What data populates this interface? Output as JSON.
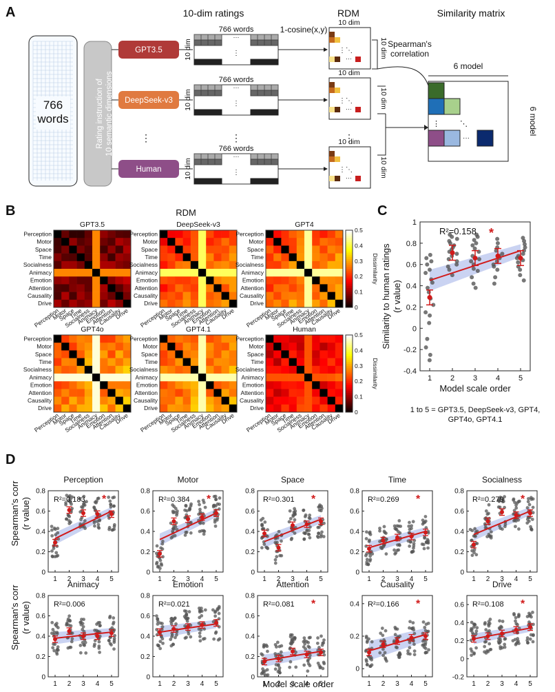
{
  "panels": {
    "A": "A",
    "B": "B",
    "C": "C",
    "D": "D"
  },
  "panelA": {
    "words_box": "766\nwords",
    "rating_instruction": "Rating instruction of\n10 semantic dimensions",
    "header_ratings": "10-dim ratings",
    "header_rdm": "RDM",
    "header_sim": "Similarity matrix",
    "models": [
      {
        "label": "GPT3.5",
        "color": "#b03a38"
      },
      {
        "label": "DeepSeek-v3",
        "color": "#e07a40"
      },
      {
        "label": "Human",
        "color": "#8e4e88"
      }
    ],
    "words_label": "766 words",
    "dim10": "10 dim",
    "ellipsis": "···",
    "cosine": "1-cosine(x,y)",
    "spearman": "Spearman's\ncorrelation",
    "model6": "6 model",
    "sim_colors": [
      "#3a6b2a",
      "#1f6fb7",
      "#a8d08c",
      "#8e4e88",
      "#9ab8e0",
      "#0b2a6e"
    ]
  },
  "panelB": {
    "title": "RDM",
    "dims": [
      "Perception",
      "Motor",
      "Space",
      "Time",
      "Socialness",
      "Animacy",
      "Emotion",
      "Attention",
      "Causality",
      "Drive"
    ],
    "models": [
      "GPT3.5",
      "DeepSeek-v3",
      "GPT4",
      "GPT4o",
      "GPT4.1",
      "Human"
    ],
    "colorbar_label": "Dissimilarity",
    "colorbar_ticks": [
      "0.5",
      "0.4",
      "0.3",
      "0.2",
      "0.1",
      "0"
    ],
    "levels": [
      [
        0.05,
        0.08,
        0.06,
        0.07,
        0.1,
        0.28,
        0.09,
        0.08,
        0.1,
        0.12
      ],
      [
        0.18,
        0.2,
        0.22,
        0.24,
        0.26,
        0.42,
        0.26,
        0.24,
        0.27,
        0.3
      ],
      [
        0.2,
        0.22,
        0.24,
        0.26,
        0.28,
        0.45,
        0.27,
        0.25,
        0.28,
        0.31
      ],
      [
        0.22,
        0.24,
        0.26,
        0.28,
        0.3,
        0.48,
        0.28,
        0.26,
        0.3,
        0.32
      ],
      [
        0.22,
        0.24,
        0.26,
        0.27,
        0.3,
        0.46,
        0.28,
        0.26,
        0.3,
        0.32
      ],
      [
        0.14,
        0.12,
        0.16,
        0.18,
        0.2,
        0.24,
        0.16,
        0.18,
        0.2,
        0.22
      ]
    ]
  },
  "panelC": {
    "chart_data": {
      "type": "scatter",
      "ylabel": "Similarity to human ratings\n(r value)",
      "xlabel": "Model scale order",
      "ylim": [
        -0.4,
        1
      ],
      "yticks": [
        "1",
        "0.8",
        "0.6",
        "0.4",
        "0.2",
        "0",
        "-0.2",
        "-0.4"
      ],
      "xticks": [
        "1",
        "2",
        "3",
        "4",
        "5"
      ],
      "r2": "R²=0.158",
      "significant": true,
      "means": [
        0.29,
        0.71,
        0.66,
        0.68,
        0.66
      ],
      "fit": [
        0.45,
        0.52,
        0.59,
        0.66,
        0.73
      ],
      "points": [
        [
          -0.3,
          -0.25,
          -0.18,
          -0.1,
          0.05,
          0.12,
          0.15,
          0.22,
          0.28,
          0.34,
          0.38,
          0.43,
          0.46,
          0.52,
          0.55,
          0.6,
          0.63,
          0.66,
          0.69
        ],
        [
          0.5,
          0.55,
          0.58,
          0.6,
          0.63,
          0.65,
          0.68,
          0.7,
          0.72,
          0.74,
          0.76,
          0.78,
          0.8,
          0.82,
          0.84,
          0.86,
          0.88
        ],
        [
          0.38,
          0.42,
          0.48,
          0.54,
          0.56,
          0.6,
          0.63,
          0.65,
          0.68,
          0.72,
          0.75,
          0.78,
          0.8,
          0.83,
          0.86,
          0.88
        ],
        [
          0.42,
          0.48,
          0.55,
          0.58,
          0.6,
          0.63,
          0.66,
          0.68,
          0.7,
          0.73,
          0.76,
          0.8,
          0.84
        ],
        [
          0.45,
          0.5,
          0.55,
          0.58,
          0.62,
          0.64,
          0.66,
          0.68,
          0.7,
          0.73,
          0.76,
          0.79,
          0.82,
          0.85
        ]
      ]
    },
    "footnote": "1 to 5 = GPT3.5, DeepSeek-v3, GPT4,\nGPT4o, GPT4.1"
  },
  "panelD": {
    "ylabel": "Spearman's corr\n(r value)",
    "xlabel": "Model scale order",
    "chart_data": [
      {
        "type": "scatter",
        "title": "Perception",
        "r2": "R²=0.183",
        "sig": true,
        "ylim": [
          0,
          0.8
        ],
        "yticks": [
          "0.8",
          "0.6",
          "0.4",
          "0.2",
          "0"
        ],
        "means": [
          0.29,
          0.61,
          0.58,
          0.57,
          0.57
        ],
        "fit": [
          0.33,
          0.4,
          0.46,
          0.53,
          0.6
        ]
      },
      {
        "type": "scatter",
        "title": "Motor",
        "r2": "R²=0.384",
        "sig": true,
        "ylim": [
          0,
          0.8
        ],
        "yticks": [
          "0.8",
          "0.6",
          "0.4",
          "0.2",
          "0"
        ],
        "means": [
          0.18,
          0.5,
          0.52,
          0.54,
          0.58
        ],
        "fit": [
          0.32,
          0.39,
          0.45,
          0.52,
          0.58
        ]
      },
      {
        "type": "scatter",
        "title": "Space",
        "r2": "R²=0.301",
        "sig": true,
        "ylim": [
          0,
          0.8
        ],
        "yticks": [
          "0.8",
          "0.6",
          "0.4",
          "0.2",
          "0"
        ],
        "means": [
          0.38,
          0.24,
          0.46,
          0.47,
          0.5
        ],
        "fit": [
          0.3,
          0.36,
          0.41,
          0.47,
          0.52
        ]
      },
      {
        "type": "scatter",
        "title": "Time",
        "r2": "R²=0.269",
        "sig": true,
        "ylim": [
          0,
          0.8
        ],
        "yticks": [
          "0.8",
          "0.6",
          "0.4",
          "0.2",
          "0"
        ],
        "means": [
          0.23,
          0.31,
          0.34,
          0.35,
          0.39
        ],
        "fit": [
          0.24,
          0.28,
          0.32,
          0.36,
          0.4
        ]
      },
      {
        "type": "scatter",
        "title": "Socialness",
        "r2": "R²=0.279",
        "sig": true,
        "ylim": [
          0,
          0.8
        ],
        "yticks": [
          "0.8",
          "0.6",
          "0.4",
          "0.2",
          "0"
        ],
        "means": [
          0.27,
          0.5,
          0.59,
          0.56,
          0.58
        ],
        "fit": [
          0.37,
          0.43,
          0.49,
          0.54,
          0.6
        ]
      },
      {
        "type": "scatter",
        "title": "Animacy",
        "r2": "R²=0.006",
        "sig": false,
        "ylim": [
          0,
          0.8
        ],
        "yticks": [
          "0.8",
          "0.6",
          "0.4",
          "0.2",
          "0"
        ],
        "means": [
          0.37,
          0.45,
          0.4,
          0.4,
          0.43
        ],
        "fit": [
          0.38,
          0.4,
          0.41,
          0.42,
          0.44
        ]
      },
      {
        "type": "scatter",
        "title": "Emotion",
        "r2": "R²=0.021",
        "sig": false,
        "ylim": [
          0,
          0.8
        ],
        "yticks": [
          "0.8",
          "0.6",
          "0.4",
          "0.2",
          "0"
        ],
        "means": [
          0.44,
          0.47,
          0.49,
          0.51,
          0.53
        ],
        "fit": [
          0.44,
          0.46,
          0.48,
          0.5,
          0.52
        ]
      },
      {
        "type": "scatter",
        "title": "Attention",
        "r2": "R²=0.081",
        "sig": true,
        "ylim": [
          0,
          0.8
        ],
        "yticks": [
          "0.8",
          "0.6",
          "0.4",
          "0.2",
          "0"
        ],
        "means": [
          0.15,
          0.18,
          0.25,
          0.22,
          0.24
        ],
        "fit": [
          0.16,
          0.19,
          0.21,
          0.23,
          0.25
        ]
      },
      {
        "type": "scatter",
        "title": "Causality",
        "r2": "R²=0.166",
        "sig": true,
        "ylim": [
          -0.05,
          0.45
        ],
        "yticks": [
          "0.4",
          "0.2",
          "0"
        ],
        "means": [
          0.1,
          0.15,
          0.17,
          0.19,
          0.2
        ],
        "fit": [
          0.11,
          0.14,
          0.16,
          0.19,
          0.21
        ]
      },
      {
        "type": "scatter",
        "title": "Drive",
        "r2": "R²=0.108",
        "sig": true,
        "ylim": [
          -0.2,
          0.7
        ],
        "yticks": [
          "0.6",
          "0.4",
          "0.2",
          "0",
          "-0.2"
        ],
        "means": [
          0.22,
          0.25,
          0.28,
          0.32,
          0.35
        ],
        "fit": [
          0.22,
          0.25,
          0.28,
          0.31,
          0.34
        ]
      }
    ],
    "xticks": [
      "1",
      "2",
      "3",
      "4",
      "5"
    ]
  }
}
